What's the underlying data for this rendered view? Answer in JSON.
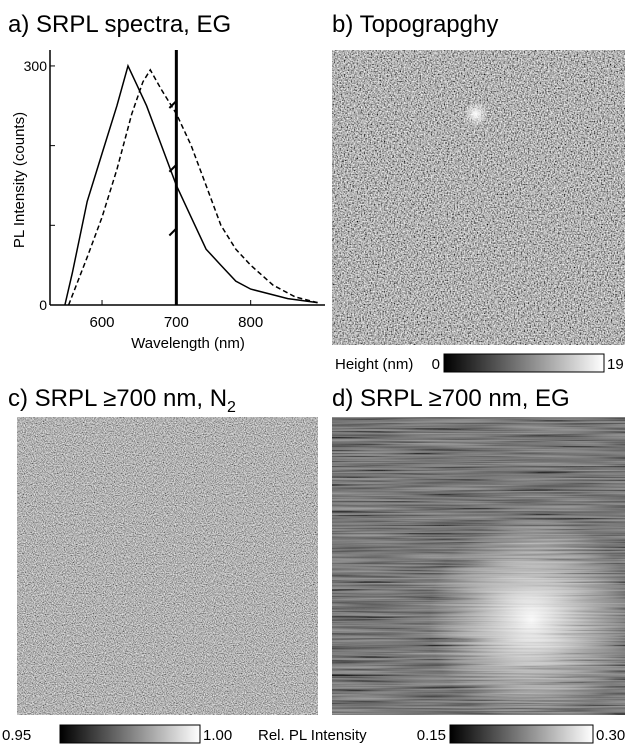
{
  "chart_data": {
    "type": "line",
    "title": "a) SRPL spectra, EG",
    "xlabel": "Wavelength (nm)",
    "ylabel": "PL Intensity (counts)",
    "series": [
      {
        "x": [
          550,
          560,
          580,
          600,
          620,
          635,
          645,
          660,
          680,
          700,
          720,
          740,
          760,
          780,
          800,
          850,
          890
        ],
        "values": [
          0,
          40,
          130,
          190,
          250,
          300,
          280,
          250,
          200,
          150,
          110,
          70,
          50,
          30,
          20,
          8,
          3
        ],
        "color": "#000000",
        "dash": false
      },
      {
        "x": [
          555,
          580,
          600,
          620,
          640,
          655,
          665,
          680,
          700,
          720,
          740,
          760,
          780,
          800,
          830,
          860,
          890
        ],
        "values": [
          0,
          60,
          110,
          170,
          240,
          280,
          295,
          270,
          240,
          200,
          150,
          100,
          70,
          50,
          25,
          10,
          3
        ],
        "color": "#000000",
        "dash": true
      }
    ],
    "xlim": [
      530,
      900
    ],
    "ylim": [
      0,
      320
    ],
    "xticks": [
      600,
      700,
      800
    ],
    "yticks": [
      0,
      300
    ],
    "yminorticks": [
      100,
      200
    ],
    "cutoff": 700
  },
  "panels": [
    {
      "title": "b) Topograpghy",
      "colorbar": {
        "label": "Height (nm)",
        "min": 0,
        "max": 19
      }
    },
    {
      "title": "c) SRPL ≥700 nm, N",
      "title_subscript": "2",
      "colorbar": {
        "min": 0.95,
        "max": {
          "value": 1,
          "label": "1.00"
        }
      }
    },
    {
      "title": "d) SRPL ≥700 nm, EG",
      "colorbar": {
        "min": 0.15,
        "max": {
          "value": 0.3,
          "label": "0.30"
        }
      }
    }
  ],
  "shared_colorbar_label": "Rel. PL Intensity"
}
